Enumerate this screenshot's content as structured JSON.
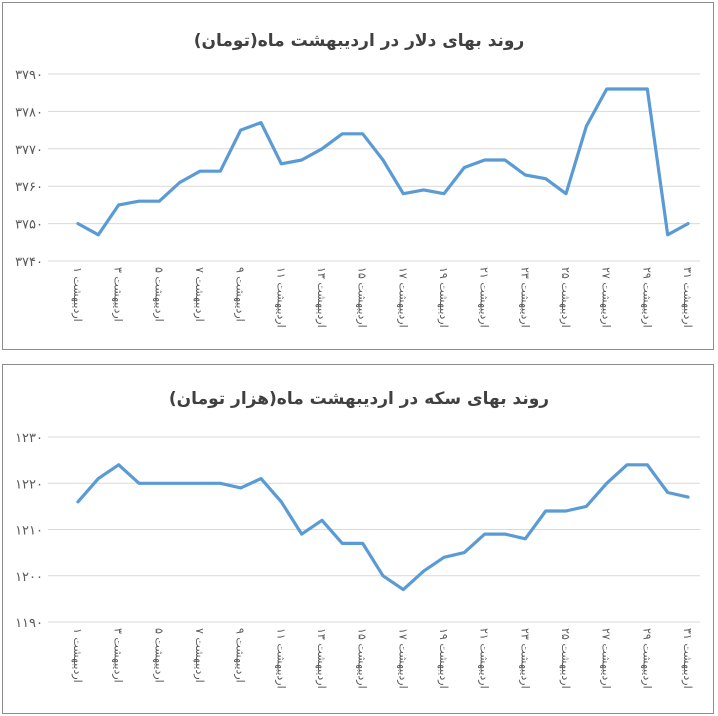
{
  "chart_data": [
    {
      "type": "line",
      "title": "روند بهای دلار در اردیبهشت ماه(تومان)",
      "xlabel": "",
      "ylabel": "",
      "ylim": [
        3740,
        3790
      ],
      "yticks": [
        3740,
        3750,
        3760,
        3770,
        3780,
        3790
      ],
      "ytick_labels": [
        "۳۷۴۰",
        "۳۷۵۰",
        "۳۷۶۰",
        "۳۷۷۰",
        "۳۷۸۰",
        "۳۷۹۰"
      ],
      "grid": true,
      "legend": "none",
      "color": "#5b9bd5",
      "categories": [
        "1 اردیبهشت",
        "2 اردیبهشت",
        "3 اردیبهشت",
        "4 اردیبهشت",
        "5 اردیبهشت",
        "6 اردیبهشت",
        "7 اردیبهشت",
        "8 اردیبهشت",
        "9 اردیبهشت",
        "10 اردیبهشت",
        "11 اردیبهشت",
        "12 اردیبهشت",
        "13 اردیبهشت",
        "14 اردیبهشت",
        "15 اردیبهشت",
        "16 اردیبهشت",
        "17 اردیبهشت",
        "18 اردیبهشت",
        "19 اردیبهشت",
        "20 اردیبهشت",
        "21 اردیبهشت",
        "22 اردیبهشت",
        "23 اردیبهشت",
        "24 اردیبهشت",
        "25 اردیبهشت",
        "26 اردیبهشت",
        "27 اردیبهشت",
        "28 اردیبهشت",
        "29 اردیبهشت",
        "30 اردیبهشت",
        "31 اردیبهشت"
      ],
      "tick_labels": [
        "۱ اردیبهشت",
        "۳ اردیبهشت",
        "۵ اردیبهشت",
        "۷ اردیبهشت",
        "۹ اردیبهشت",
        "۱۱ اردیبهشت",
        "۱۳ اردیبهشت",
        "۱۵ اردیبهشت",
        "۱۷ اردیبهشت",
        "۱۹ اردیبهشت",
        "۲۱ اردیبهشت",
        "۲۳ اردیبهشت",
        "۲۵ اردیبهشت",
        "۲۷ اردیبهشت",
        "۲۹ اردیبهشت",
        "۳۱ اردیبهشت"
      ],
      "series": [
        {
          "values": [
            3750,
            3747,
            3755,
            3756,
            3756,
            3761,
            3764,
            3764,
            3775,
            3777,
            3766,
            3767,
            3770,
            3774,
            3774,
            3767,
            3758,
            3759,
            3758,
            3765,
            3767,
            3767,
            3763,
            3762,
            3758,
            3776,
            3786,
            3786,
            3786,
            3747,
            3750
          ]
        }
      ]
    },
    {
      "type": "line",
      "title": "روند بهای سکه در اردیبهشت ماه(هزار تومان)",
      "xlabel": "",
      "ylabel": "",
      "ylim": [
        1190,
        1230
      ],
      "yticks": [
        1190,
        1200,
        1210,
        1220,
        1230
      ],
      "ytick_labels": [
        "۱۱۹۰",
        "۱۲۰۰",
        "۱۲۱۰",
        "۱۲۲۰",
        "۱۲۳۰"
      ],
      "grid": true,
      "legend": "none",
      "color": "#5b9bd5",
      "categories": [
        "1 اردیبهشت",
        "2 اردیبهشت",
        "3 اردیبهشت",
        "4 اردیبهشت",
        "5 اردیبهشت",
        "6 اردیبهشت",
        "7 اردیبهشت",
        "8 اردیبهشت",
        "9 اردیبهشت",
        "10 اردیبهشت",
        "11 اردیبهشت",
        "12 اردیبهشت",
        "13 اردیبهشت",
        "14 اردیبهشت",
        "15 اردیبهشت",
        "16 اردیبهشت",
        "17 اردیبهشت",
        "18 اردیبهشت",
        "19 اردیبهشت",
        "20 اردیبهشت",
        "21 اردیبهشت",
        "22 اردیبهشت",
        "23 اردیبهشت",
        "24 اردیبهشت",
        "25 اردیبهشت",
        "26 اردیبهشت",
        "27 اردیبهشت",
        "28 اردیبهشت",
        "29 اردیبهشت",
        "30 اردیبهشت",
        "31 اردیبهشت"
      ],
      "tick_labels": [
        "۱ اردیبهشت",
        "۳ اردیبهشت",
        "۵ اردیبهشت",
        "۷ اردیبهشت",
        "۹ اردیبهشت",
        "۱۱ اردیبهشت",
        "۱۳ اردیبهشت",
        "۱۵ اردیبهشت",
        "۱۷ اردیبهشت",
        "۱۹ اردیبهشت",
        "۲۱ اردیبهشت",
        "۲۳ اردیبهشت",
        "۲۵ اردیبهشت",
        "۲۷ اردیبهشت",
        "۲۹ اردیبهشت",
        "۳۱ اردیبهشت"
      ],
      "series": [
        {
          "values": [
            1216,
            1221,
            1224,
            1220,
            1220,
            1220,
            1220,
            1220,
            1219,
            1221,
            1216,
            1209,
            1212,
            1207,
            1207,
            1200,
            1197,
            1201,
            1204,
            1205,
            1209,
            1209,
            1208,
            1214,
            1214,
            1215,
            1220,
            1224,
            1224,
            1218,
            1217
          ]
        }
      ]
    }
  ]
}
